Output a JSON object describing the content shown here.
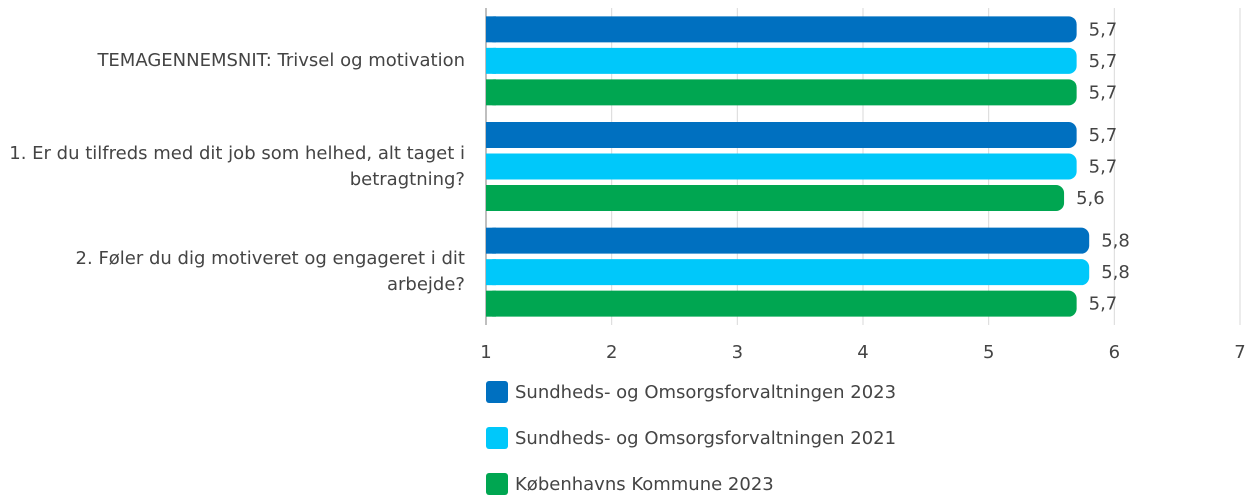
{
  "chart_data": {
    "type": "bar",
    "orientation": "horizontal",
    "categories": [
      "TEMAGENNEMSNIT: Trivsel og motivation",
      "1. Er du tilfreds med dit job som helhed, alt taget i betragtning?",
      "2. Føler du dig motiveret og engageret i dit arbejde?"
    ],
    "series": [
      {
        "name": "Sundheds- og Omsorgsforvaltningen 2023",
        "color": "#0070c0",
        "values": [
          5.7,
          5.7,
          5.8
        ],
        "value_labels": [
          "5,7",
          "5,7",
          "5,8"
        ]
      },
      {
        "name": "Sundheds- og Omsorgsforvaltningen 2021",
        "color": "#00c8fa",
        "values": [
          5.7,
          5.7,
          5.8
        ],
        "value_labels": [
          "5,7",
          "5,7",
          "5,8"
        ]
      },
      {
        "name": "Københavns Kommune 2023",
        "color": "#00a651",
        "values": [
          5.7,
          5.6,
          5.7
        ],
        "value_labels": [
          "5,7",
          "5,6",
          "5,7"
        ]
      }
    ],
    "xlim": [
      1,
      7
    ],
    "xticks": [
      1,
      2,
      3,
      4,
      5,
      6,
      7
    ],
    "grid": true,
    "legend": "bottom"
  }
}
